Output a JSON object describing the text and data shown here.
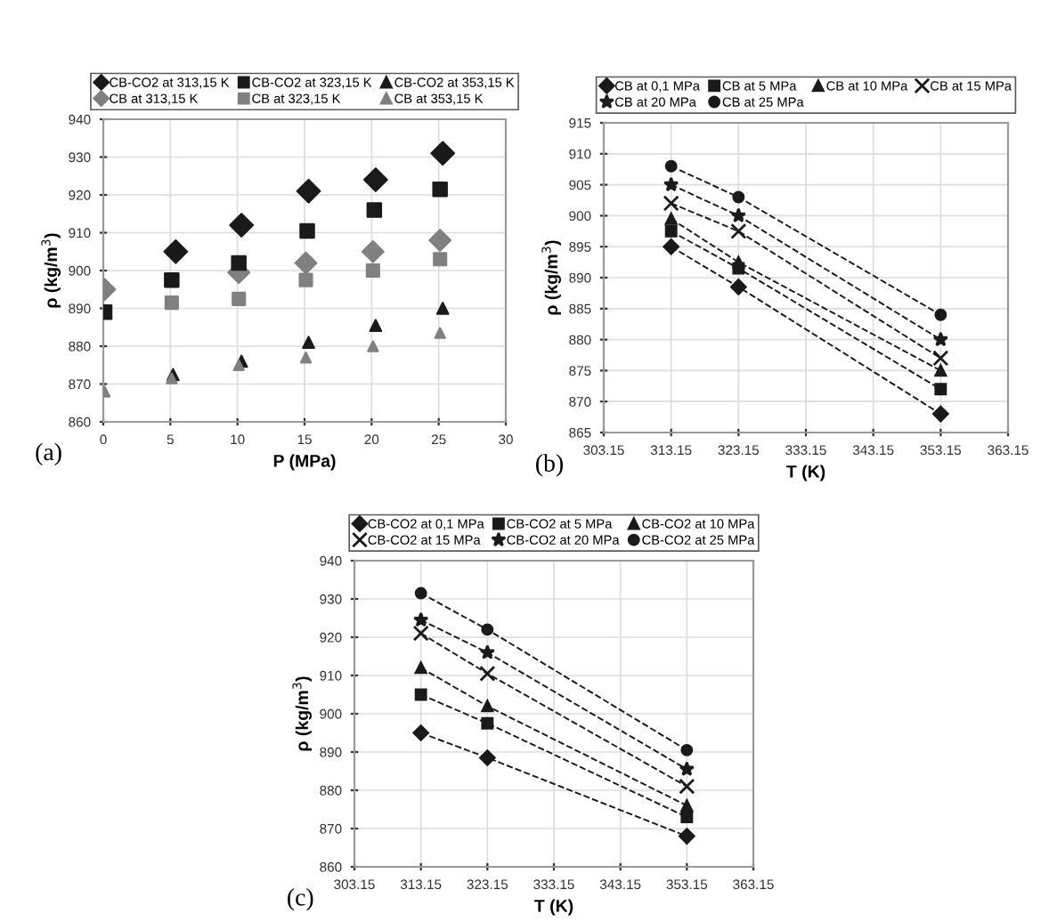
{
  "chart_data": [
    {
      "type": "scatter",
      "xlabel": "P (MPa)",
      "ylabel": "ρ (kg/m$^{3}$)",
      "annotations": [
        "(a)"
      ],
      "xlim": [
        0,
        30
      ],
      "xticks": [
        0,
        5,
        10,
        15,
        20,
        25,
        30
      ],
      "ylim": [
        860,
        940
      ],
      "yticks": [
        860,
        870,
        880,
        890,
        900,
        910,
        920,
        930,
        940
      ],
      "grid": true,
      "legend": "top",
      "series": [
        {
          "name": "CB-CO2 at 313,15 K",
          "color": "#1a1a1a",
          "marker": "diamond",
          "x": [
            5.4,
            10.3,
            15.3,
            20.3,
            25.3
          ],
          "values": [
            905,
            912,
            921,
            924,
            931
          ]
        },
        {
          "name": "CB at 313,15 K",
          "color": "#808080",
          "marker": "diamond",
          "x": [
            0.1,
            10.1,
            15.1,
            20.1,
            25.1
          ],
          "values": [
            895,
            899.5,
            902,
            905,
            908
          ]
        },
        {
          "name": "CB-CO2 at 323,15 K",
          "color": "#1a1a1a",
          "marker": "square",
          "x": [
            0.1,
            5.1,
            10.1,
            15.2,
            20.2,
            25.1
          ],
          "values": [
            889,
            897.5,
            902,
            910.5,
            916,
            921.5
          ]
        },
        {
          "name": "CB at 323,15 K",
          "color": "#808080",
          "marker": "square",
          "x": [
            5.1,
            10.1,
            15.1,
            20.1,
            25.1
          ],
          "values": [
            891.5,
            892.5,
            897.5,
            900,
            903
          ]
        },
        {
          "name": "CB-CO2 at 353,15 K",
          "color": "#1a1a1a",
          "marker": "triangle",
          "x": [
            5.2,
            10.3,
            15.3,
            20.3,
            25.3
          ],
          "values": [
            872.5,
            876,
            881,
            885.5,
            890
          ]
        },
        {
          "name": "CB at 353,15 K",
          "color": "#808080",
          "marker": "triangle",
          "x": [
            0.1,
            5.1,
            10.1,
            15.1,
            20.1,
            25.1
          ],
          "values": [
            868,
            871.5,
            875,
            877,
            880,
            883.5
          ]
        }
      ]
    },
    {
      "type": "line",
      "xlabel": "T (K)",
      "ylabel": "ρ (kg/m$^{3}$)",
      "annotations": [
        "(b)"
      ],
      "x": [
        313.15,
        323.15,
        353.15
      ],
      "xlim": [
        303.15,
        363.15
      ],
      "xticks": [
        303.15,
        313.15,
        323.15,
        333.15,
        343.15,
        353.15,
        363.15
      ],
      "ylim": [
        865,
        915
      ],
      "yticks": [
        865,
        870,
        875,
        880,
        885,
        890,
        895,
        900,
        905,
        910,
        915
      ],
      "grid": true,
      "legend": "top",
      "line_style": "dashed",
      "series": [
        {
          "name": "CB at 0,1 MPa",
          "color": "#1a1a1a",
          "marker": "diamond",
          "values": [
            895,
            888.5,
            868
          ]
        },
        {
          "name": "CB at 20 MPa",
          "color": "#1a1a1a",
          "marker": "star",
          "values": [
            905,
            900,
            880
          ]
        },
        {
          "name": "CB at 5 MPa",
          "color": "#1a1a1a",
          "marker": "square",
          "values": [
            897.5,
            891.5,
            872
          ]
        },
        {
          "name": "CB at 25 MPa",
          "color": "#1a1a1a",
          "marker": "circle",
          "values": [
            908,
            903,
            884
          ]
        },
        {
          "name": "CB at 10 MPa",
          "color": "#1a1a1a",
          "marker": "triangle",
          "values": [
            899.5,
            892.5,
            875
          ]
        },
        {
          "name": "CB at 15 MPa",
          "color": "#1a1a1a",
          "marker": "cross",
          "values": [
            902,
            897.5,
            877
          ]
        }
      ]
    },
    {
      "type": "line",
      "xlabel": "T (K)",
      "ylabel": "ρ (kg/m$^{3}$)",
      "annotations": [
        "(c)"
      ],
      "x": [
        313.15,
        323.15,
        353.15
      ],
      "xlim": [
        303.15,
        363.15
      ],
      "xticks": [
        303.15,
        313.15,
        323.15,
        333.15,
        343.15,
        353.15,
        363.15
      ],
      "ylim": [
        860,
        940
      ],
      "yticks": [
        860,
        870,
        880,
        890,
        900,
        910,
        920,
        930,
        940
      ],
      "grid": true,
      "legend": "top",
      "line_style": "dashed",
      "series": [
        {
          "name": "CB-CO2 at 0,1 MPa",
          "color": "#1a1a1a",
          "marker": "diamond",
          "values": [
            895,
            888.5,
            868
          ]
        },
        {
          "name": "CB-CO2 at 15 MPa",
          "color": "#1a1a1a",
          "marker": "cross",
          "values": [
            921,
            910.5,
            881
          ]
        },
        {
          "name": "CB-CO2 at 5 MPa",
          "color": "#1a1a1a",
          "marker": "square",
          "values": [
            905,
            897.5,
            873
          ]
        },
        {
          "name": "CB-CO2 at 20 MPa",
          "color": "#1a1a1a",
          "marker": "star",
          "values": [
            924.5,
            916,
            885.5
          ]
        },
        {
          "name": "CB-CO2 at 10 MPa",
          "color": "#1a1a1a",
          "marker": "triangle",
          "values": [
            912,
            902,
            876
          ]
        },
        {
          "name": "CB-CO2 at 25 MPa",
          "color": "#1a1a1a",
          "marker": "circle",
          "values": [
            931.5,
            922,
            890.5
          ]
        }
      ]
    }
  ]
}
